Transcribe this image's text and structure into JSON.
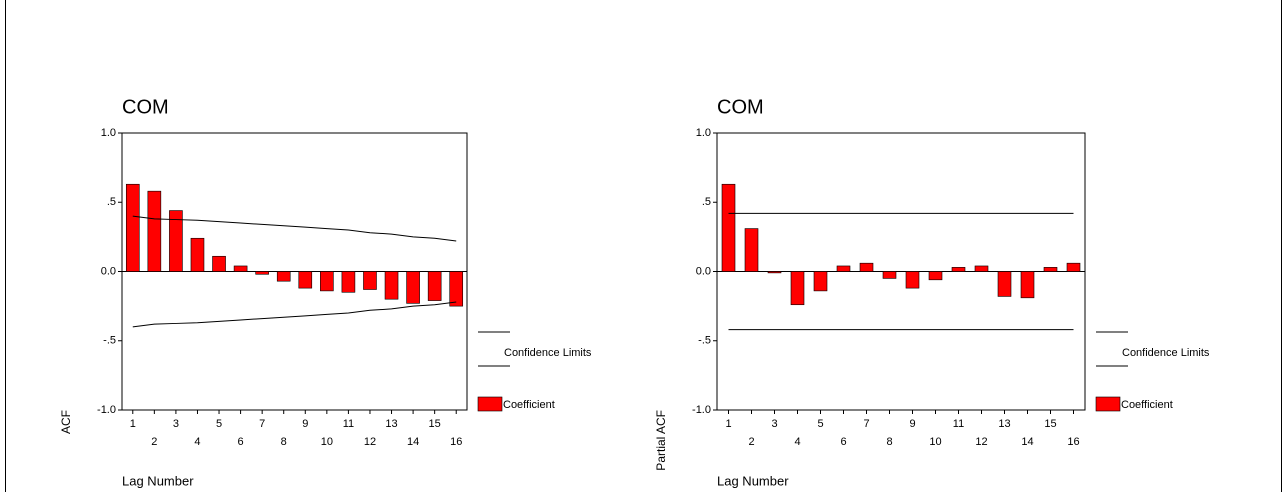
{
  "chart_data": [
    {
      "type": "bar",
      "title": "COM",
      "x_label": "Lag Number",
      "y_label": "ACF",
      "categories": [
        "1",
        "2",
        "3",
        "4",
        "5",
        "6",
        "7",
        "8",
        "9",
        "10",
        "11",
        "12",
        "13",
        "14",
        "15",
        "16"
      ],
      "series": [
        {
          "name": "Coefficient",
          "color": "#ff0000",
          "values": [
            0.63,
            0.58,
            0.44,
            0.24,
            0.11,
            0.04,
            -0.02,
            -0.07,
            -0.12,
            -0.14,
            -0.15,
            -0.13,
            -0.2,
            -0.23,
            -0.21,
            -0.25
          ]
        }
      ],
      "confidence": {
        "name": "Confidence Limits",
        "upper": [
          0.4,
          0.38,
          0.375,
          0.37,
          0.36,
          0.35,
          0.34,
          0.33,
          0.32,
          0.31,
          0.3,
          0.28,
          0.27,
          0.25,
          0.24,
          0.22
        ],
        "lower": [
          -0.4,
          -0.38,
          -0.375,
          -0.37,
          -0.36,
          -0.35,
          -0.34,
          -0.33,
          -0.32,
          -0.31,
          -0.3,
          -0.28,
          -0.27,
          -0.25,
          -0.24,
          -0.22
        ]
      },
      "ylim": [
        -1,
        1
      ],
      "yticks": [
        {
          "value": -1,
          "label": "-1.0"
        },
        {
          "value": -0.5,
          "label": "-.5"
        },
        {
          "value": 0,
          "label": "0.0"
        },
        {
          "value": 0.5,
          "label": ".5"
        },
        {
          "value": 1,
          "label": "1.0"
        }
      ]
    },
    {
      "type": "bar",
      "title": "COM",
      "x_label": "Lag Number",
      "y_label": "Partial ACF",
      "categories": [
        "1",
        "2",
        "3",
        "4",
        "5",
        "6",
        "7",
        "8",
        "9",
        "10",
        "11",
        "12",
        "13",
        "14",
        "15",
        "16"
      ],
      "series": [
        {
          "name": "Coefficient",
          "color": "#ff0000",
          "values": [
            0.63,
            0.31,
            -0.01,
            -0.24,
            -0.14,
            0.04,
            0.06,
            -0.05,
            -0.12,
            -0.06,
            0.03,
            0.04,
            -0.18,
            -0.19,
            0.03,
            0.06
          ]
        }
      ],
      "confidence": {
        "name": "Confidence Limits",
        "upper": [
          0.42,
          0.42,
          0.42,
          0.42,
          0.42,
          0.42,
          0.42,
          0.42,
          0.42,
          0.42,
          0.42,
          0.42,
          0.42,
          0.42,
          0.42,
          0.42
        ],
        "lower": [
          -0.42,
          -0.42,
          -0.42,
          -0.42,
          -0.42,
          -0.42,
          -0.42,
          -0.42,
          -0.42,
          -0.42,
          -0.42,
          -0.42,
          -0.42,
          -0.42,
          -0.42,
          -0.42
        ]
      },
      "ylim": [
        -1,
        1
      ],
      "yticks": [
        {
          "value": -1,
          "label": "-1.0"
        },
        {
          "value": -0.5,
          "label": "-.5"
        },
        {
          "value": 0,
          "label": "0.0"
        },
        {
          "value": 0.5,
          "label": ".5"
        },
        {
          "value": 1,
          "label": "1.0"
        }
      ]
    }
  ]
}
